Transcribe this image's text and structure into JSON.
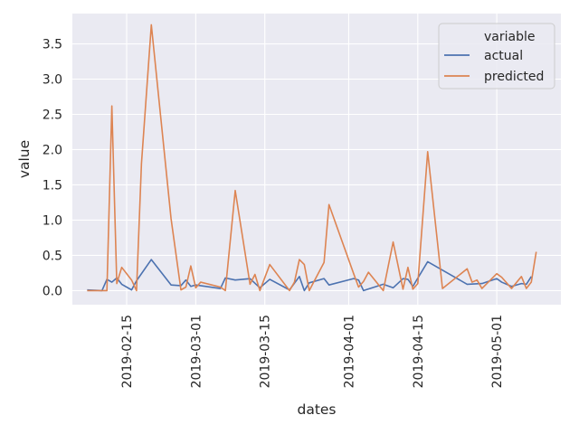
{
  "chart_data": {
    "type": "line",
    "xlabel": "dates",
    "ylabel": "value",
    "x_type": "date",
    "xlim": [
      "2019-02-04",
      "2019-05-14"
    ],
    "ylim": [
      -0.2,
      3.93
    ],
    "grid": true,
    "legend": {
      "title": "variable",
      "placement": "top-right",
      "entries": [
        "actual",
        "predicted"
      ]
    },
    "x_ticks": [
      "2019-02-15",
      "2019-03-01",
      "2019-03-15",
      "2019-04-01",
      "2019-04-15",
      "2019-05-01"
    ],
    "y_ticks": [
      "0.0",
      "0.5",
      "1.0",
      "1.5",
      "2.0",
      "2.5",
      "3.0",
      "3.5"
    ],
    "colors": {
      "actual": "#4c72b0",
      "predicted": "#dd8452",
      "background": "#eaeaf2",
      "grid": "#ffffff"
    },
    "series": [
      {
        "name": "actual",
        "x": [
          "2019-02-07",
          "2019-02-10",
          "2019-02-11",
          "2019-02-12",
          "2019-02-13",
          "2019-02-14",
          "2019-02-16",
          "2019-02-17",
          "2019-02-20",
          "2019-02-24",
          "2019-02-26",
          "2019-02-27",
          "2019-02-28",
          "2019-03-01",
          "2019-03-06",
          "2019-03-07",
          "2019-03-09",
          "2019-03-12",
          "2019-03-14",
          "2019-03-16",
          "2019-03-20",
          "2019-03-22",
          "2019-03-23",
          "2019-03-24",
          "2019-03-27",
          "2019-03-28",
          "2019-04-02",
          "2019-04-03",
          "2019-04-04",
          "2019-04-08",
          "2019-04-10",
          "2019-04-12",
          "2019-04-13",
          "2019-04-14",
          "2019-04-17",
          "2019-04-25",
          "2019-04-28",
          "2019-05-01",
          "2019-05-02",
          "2019-05-04",
          "2019-05-06",
          "2019-05-07",
          "2019-05-08"
        ],
        "values": [
          0.01,
          0.0,
          0.16,
          0.12,
          0.18,
          0.09,
          0.01,
          0.14,
          0.44,
          0.08,
          0.07,
          0.15,
          0.06,
          0.08,
          0.03,
          0.18,
          0.15,
          0.17,
          0.04,
          0.16,
          0.01,
          0.2,
          0.0,
          0.11,
          0.17,
          0.08,
          0.17,
          0.15,
          0.0,
          0.09,
          0.04,
          0.17,
          0.16,
          0.06,
          0.41,
          0.09,
          0.1,
          0.17,
          0.12,
          0.06,
          0.1,
          0.09,
          0.2
        ]
      },
      {
        "name": "predicted",
        "x": [
          "2019-02-07",
          "2019-02-10",
          "2019-02-11",
          "2019-02-12",
          "2019-02-13",
          "2019-02-14",
          "2019-02-16",
          "2019-02-17",
          "2019-02-18",
          "2019-02-20",
          "2019-02-24",
          "2019-02-26",
          "2019-02-27",
          "2019-02-28",
          "2019-03-01",
          "2019-03-02",
          "2019-03-06",
          "2019-03-07",
          "2019-03-09",
          "2019-03-12",
          "2019-03-13",
          "2019-03-14",
          "2019-03-16",
          "2019-03-20",
          "2019-03-21",
          "2019-03-22",
          "2019-03-23",
          "2019-03-24",
          "2019-03-27",
          "2019-03-28",
          "2019-04-02",
          "2019-04-03",
          "2019-04-04",
          "2019-04-05",
          "2019-04-08",
          "2019-04-10",
          "2019-04-12",
          "2019-04-13",
          "2019-04-14",
          "2019-04-15",
          "2019-04-17",
          "2019-04-20",
          "2019-04-25",
          "2019-04-26",
          "2019-04-27",
          "2019-04-28",
          "2019-05-01",
          "2019-05-02",
          "2019-05-04",
          "2019-05-06",
          "2019-05-07",
          "2019-05-08",
          "2019-05-09"
        ],
        "values": [
          0.0,
          0.0,
          0.0,
          2.62,
          0.1,
          0.33,
          0.15,
          0.0,
          1.8,
          3.77,
          1.02,
          0.01,
          0.05,
          0.35,
          0.04,
          0.12,
          0.05,
          0.0,
          1.42,
          0.09,
          0.23,
          0.0,
          0.37,
          0.0,
          0.12,
          0.44,
          0.37,
          0.0,
          0.4,
          1.22,
          0.24,
          0.05,
          0.13,
          0.26,
          0.0,
          0.69,
          0.02,
          0.33,
          0.02,
          0.1,
          1.97,
          0.03,
          0.31,
          0.12,
          0.15,
          0.03,
          0.24,
          0.19,
          0.03,
          0.2,
          0.03,
          0.12,
          0.55
        ]
      }
    ]
  }
}
